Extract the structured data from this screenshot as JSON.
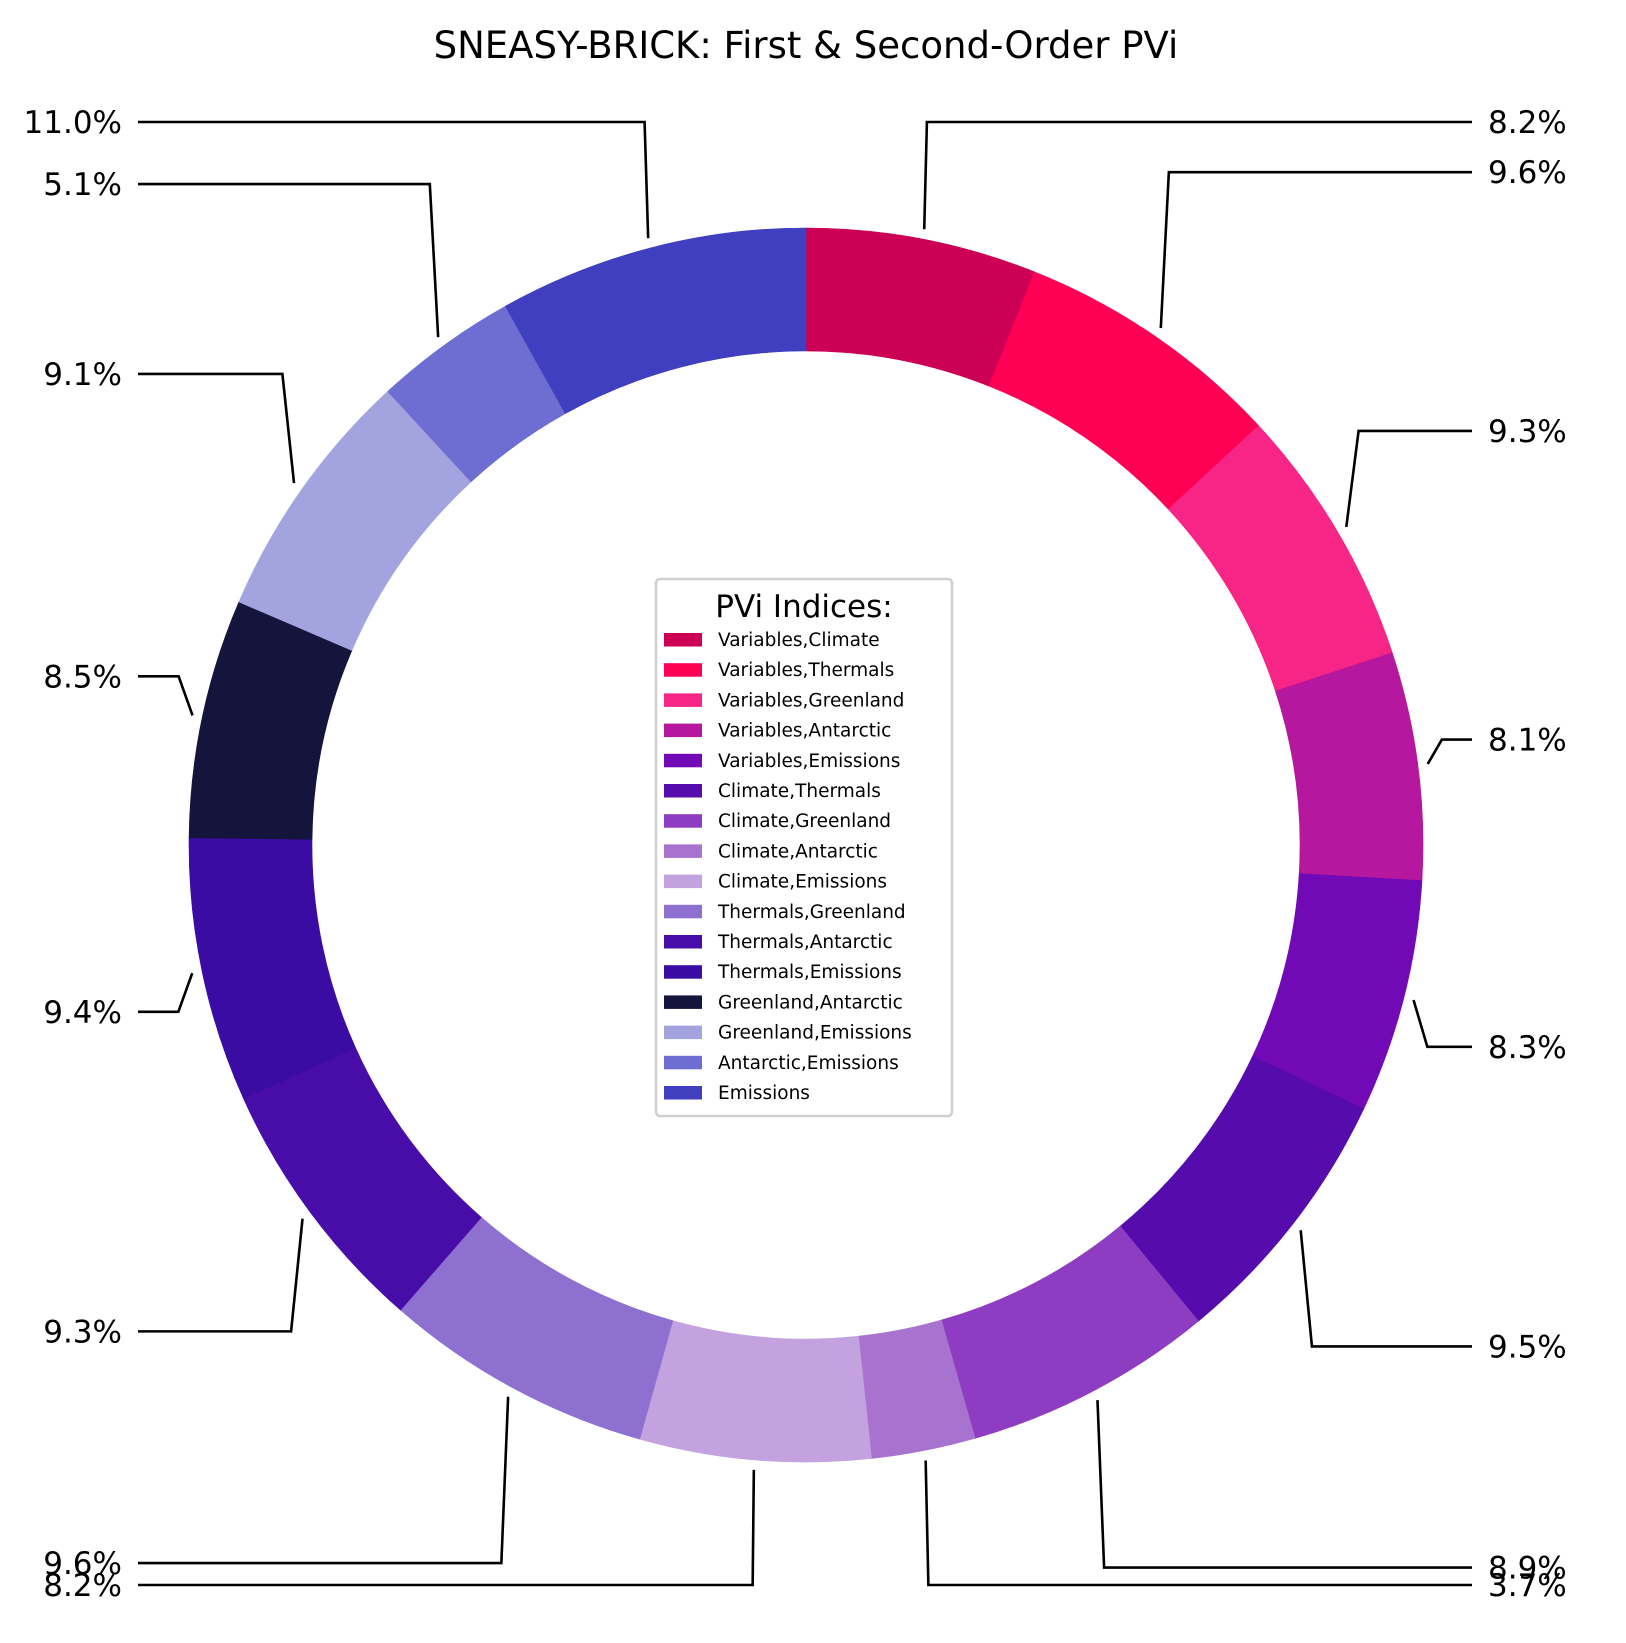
{
  "chart_data": {
    "type": "pie",
    "title": "SNEASY-BRICK: First & Second-Order PVi",
    "legend_title": "PVi Indices:",
    "legend_placement": "center",
    "series": [
      {
        "name": "Variables,Climate",
        "value": 8.2,
        "label": "8.2%",
        "color": "#cc0055"
      },
      {
        "name": "Variables,Thermals",
        "value": 9.6,
        "label": "9.6%",
        "color": "#ff0055"
      },
      {
        "name": "Variables,Greenland",
        "value": 9.3,
        "label": "9.3%",
        "color": "#f72585"
      },
      {
        "name": "Variables,Antarctic",
        "value": 8.1,
        "label": "8.1%",
        "color": "#b5179e"
      },
      {
        "name": "Variables,Emissions",
        "value": 8.3,
        "label": "8.3%",
        "color": "#7209b7"
      },
      {
        "name": "Climate,Thermals",
        "value": 9.5,
        "label": "9.5%",
        "color": "#560bad"
      },
      {
        "name": "Climate,Greenland",
        "value": 8.9,
        "label": "8.9%",
        "color": "#8e3cc1"
      },
      {
        "name": "Climate,Antarctic",
        "value": 3.7,
        "label": "3.7%",
        "color": "#a873cf"
      },
      {
        "name": "Climate,Emissions",
        "value": 8.2,
        "label": "8.2%",
        "color": "#c3a2df"
      },
      {
        "name": "Thermals,Greenland",
        "value": 9.6,
        "label": "9.6%",
        "color": "#8e70d0"
      },
      {
        "name": "Thermals,Antarctic",
        "value": 9.3,
        "label": "9.3%",
        "color": "#480ca8"
      },
      {
        "name": "Thermals,Emissions",
        "value": 9.4,
        "label": "9.4%",
        "color": "#3a0ca3"
      },
      {
        "name": "Greenland,Antarctic",
        "value": 8.5,
        "label": "8.5%",
        "color": "#14143c"
      },
      {
        "name": "Greenland,Emissions",
        "value": 9.1,
        "label": "9.1%",
        "color": "#a3a3df"
      },
      {
        "name": "Antarctic,Emissions",
        "value": 5.1,
        "label": "5.1%",
        "color": "#6e6ed2"
      },
      {
        "name": "Emissions",
        "value": 11.0,
        "label": "11.0%",
        "color": "#3f3fbf"
      }
    ]
  }
}
